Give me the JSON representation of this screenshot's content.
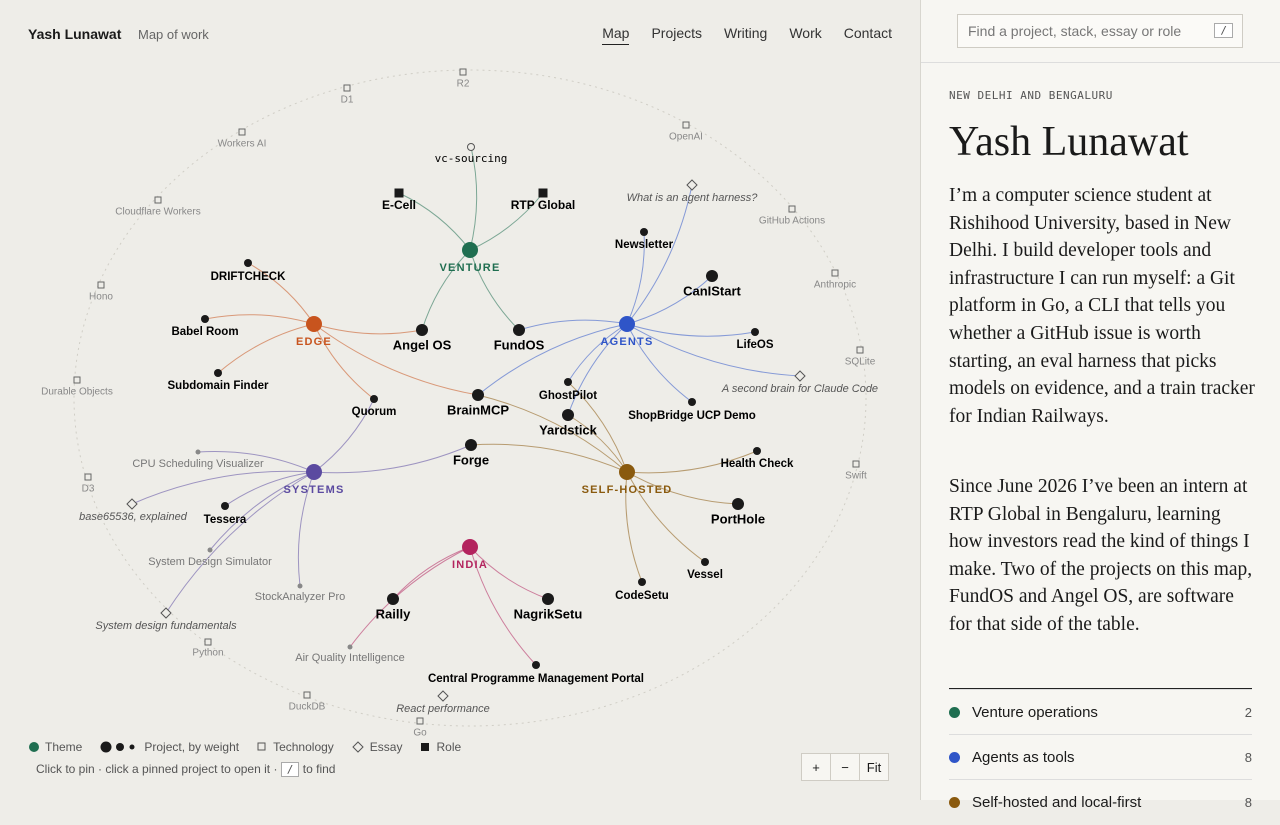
{
  "header": {
    "name": "Yash Lunawat",
    "subtitle": "Map of work",
    "nav": [
      "Map",
      "Projects",
      "Writing",
      "Work",
      "Contact"
    ]
  },
  "map": {
    "themes": [
      {
        "label": "VENTURE",
        "color": "#1f6e50"
      },
      {
        "label": "EDGE",
        "color": "#c8541e"
      },
      {
        "label": "AGENTS",
        "color": "#2f55c8"
      },
      {
        "label": "SYSTEMS",
        "color": "#5b4aa0"
      },
      {
        "label": "SELF-HOSTED",
        "color": "#8a5a0e"
      },
      {
        "label": "INDIA",
        "color": "#b3245e"
      }
    ],
    "projects": [
      "vc-sourcing",
      "DRIFTCHECK",
      "Babel Room",
      "Subdomain Finder",
      "Angel OS",
      "FundOS",
      "Quorum",
      "BrainMCP",
      "Newsletter",
      "CanIStart",
      "LifeOS",
      "GhostPilot",
      "Yardstick",
      "ShopBridge UCP Demo",
      "Forge",
      "Tessera",
      "Health Check",
      "PortHole",
      "Vessel",
      "CodeSetu",
      "Railly",
      "NagrikSetu",
      "Central Programme Management Portal",
      "CPU Scheduling Visualizer",
      "System Design Simulator",
      "StockAnalyzer Pro",
      "Air Quality Intelligence"
    ],
    "roles": [
      "E-Cell",
      "RTP Global"
    ],
    "technologies": [
      "R2",
      "D1",
      "Workers AI",
      "OpenAI",
      "Cloudflare Workers",
      "GitHub Actions",
      "Anthropic",
      "Hono",
      "SQLite",
      "Durable Objects",
      "D3",
      "Swift",
      "Python",
      "DuckDB",
      "Go"
    ],
    "essays": [
      "What is an agent harness?",
      "A second brain for Claude Code",
      "base65536, explained",
      "System design fundamentals",
      "React performance"
    ]
  },
  "legend": {
    "theme": "Theme",
    "project": "Project, by weight",
    "technology": "Technology",
    "essay": "Essay",
    "role": "Role"
  },
  "hint": {
    "before": "Click to pin · click a pinned project to open it ·",
    "key": "/",
    "after": "to find"
  },
  "zoom": [
    "+",
    "−",
    "Fit"
  ],
  "sidebar": {
    "search_placeholder": "Find a project, stack, essay or role",
    "search_key": "/",
    "location": "NEW DELHI AND BENGALURU",
    "name": "Yash Lunawat",
    "paragraphs": [
      "I’m a computer science student at Rishihood University, based in New Delhi. I build developer tools and infrastructure I can run myself: a Git platform in Go, a CLI that tells you whether a GitHub issue is worth starting, an eval harness that picks models on evidence, and a train tracker for Indian Railways.",
      "Since June 2026 I’ve been an intern at RTP Global in Bengaluru, learning how investors read the kind of things I make. Two of the projects on this map, FundOS and Angel OS, are software for that side of the table."
    ],
    "themes": [
      {
        "name": "Venture operations",
        "count": 2
      },
      {
        "name": "Agents as tools",
        "count": 8
      },
      {
        "name": "Self-hosted and local-first",
        "count": 8
      }
    ]
  }
}
